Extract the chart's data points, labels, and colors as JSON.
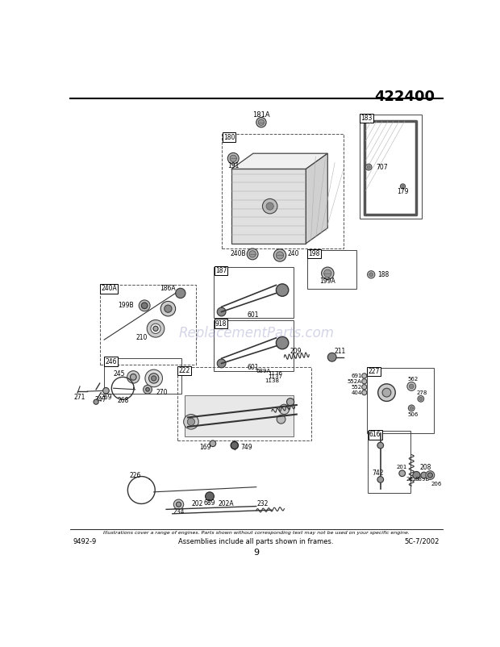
{
  "title": "422400",
  "bg_color": "#ffffff",
  "footer_left": "9492-9",
  "footer_center": "Assemblies include all parts shown in frames.",
  "footer_right": "5C-7/2002",
  "footer_italic": "Illustrations cover a range of engines. Parts shown without corresponding text may not be used on your specific engine.",
  "page_number": "9",
  "watermark_text": "ReplacementParts.com",
  "watermark_color": "#8888bb",
  "watermark_alpha": 0.35,
  "gray": "#555555",
  "lightgray": "#aaaaaa",
  "darkgray": "#333333",
  "black": "#000000"
}
